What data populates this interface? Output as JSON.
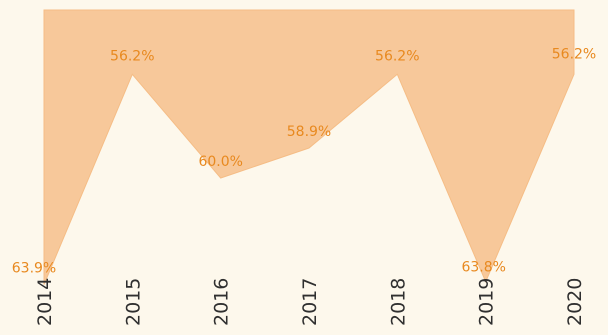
{
  "chart_data": {
    "type": "area",
    "categories": [
      "2014",
      "2015",
      "2016",
      "2017",
      "2018",
      "2019",
      "2020"
    ],
    "series": [
      {
        "values": [
          63.9,
          56.2,
          60.0,
          58.9,
          56.2,
          63.8,
          56.2
        ],
        "labels": [
          "63.9%",
          "56.2%",
          "60.0%",
          "58.9%",
          "56.2%",
          "63.8%",
          "56.2%"
        ]
      }
    ],
    "ylim": [
      0,
      64
    ],
    "y_axis_inverted": true,
    "grid": false,
    "colors": {
      "area_fill": "#f7c89a",
      "area_stroke": "#f5bd86",
      "value_label": "#e8891f",
      "tick_label": "#2f2f2f",
      "background": "#fdf8ec"
    }
  }
}
